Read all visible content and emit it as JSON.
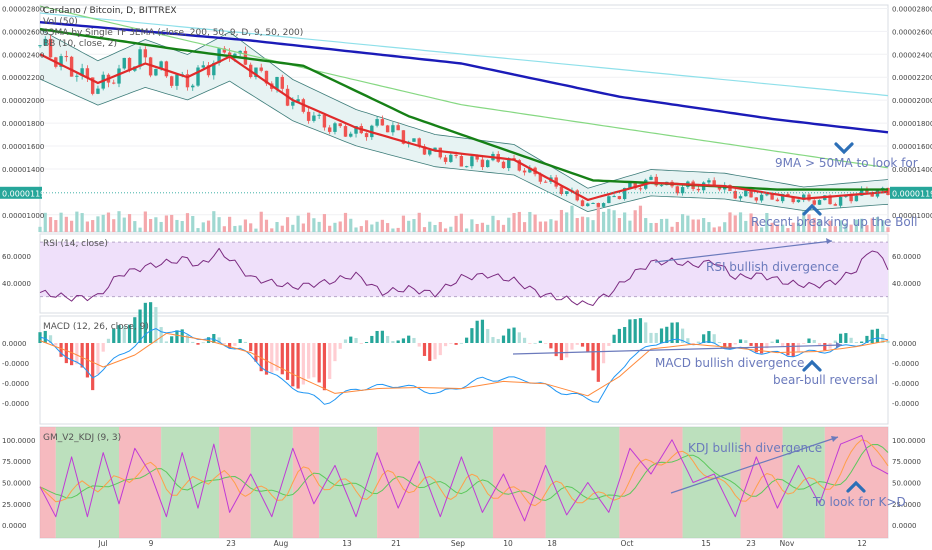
{
  "header": {
    "title": "Cardano / Bitcoin, D, BITTREX",
    "indicators": [
      "Vol (50)",
      "33MA by Single TF 3EMA (close, 200, 50, 9, D, 9, 50, 200)",
      "BB (10, close, 2)"
    ]
  },
  "panes": {
    "rsi": {
      "label": "RSI (14, close)"
    },
    "macd": {
      "label": "MACD (12, 26, close, 9)"
    },
    "kdj": {
      "label": "GM_V2_KDJ (9, 3)"
    }
  },
  "current_price": "0.00001192",
  "annotations": {
    "ma_cross": "9MA > 50MA to look for",
    "boll_break": "Recent breaking up the Boll",
    "rsi_div": "RSI bullish divergence",
    "macd_div": "MACD bullish divergence",
    "reversal": "bear-bull reversal",
    "kdj_div": "KDJ bullish divergence",
    "kd_cross": "To look for K>D"
  },
  "colors": {
    "up": "#26a69a",
    "down": "#ef5350",
    "ma200": "#1b1bb8",
    "ma50": "#168016",
    "ma9": "#e02a2a",
    "rsi_line": "#7b2b80",
    "rsi_band": "#efe0fa",
    "macd_line": "#2196f3",
    "signal_line": "#ff8a3c",
    "kdj_k": "#c03ad6",
    "kdj_d": "#ff9f4a",
    "kdj_j": "#5cc85c",
    "bull_bg": "#a5d6a7",
    "bear_bg": "#f3a3aa",
    "annotation": "#6b7abc",
    "price_label_bg": "#26a69a"
  },
  "chart_data": {
    "type": "candlestick",
    "x_ticks": [
      "Jul",
      "9",
      "23",
      "Aug",
      "13",
      "21",
      "Sep",
      "10",
      "18",
      "Oct",
      "15",
      "23",
      "Nov",
      "12"
    ],
    "price_axis": {
      "ticks": [
        "0.00002800",
        "0.00002600",
        "0.00002400",
        "0.00002200",
        "0.00002000",
        "0.00001800",
        "0.00001600",
        "0.00001400",
        "0.00001192",
        "0.00001000"
      ],
      "range": [
        8.5e-06,
        2.83e-05
      ]
    },
    "rsi_axis": {
      "ticks": [
        "60.0000",
        "40.0000"
      ],
      "range": [
        18,
        76
      ],
      "band": [
        30,
        70
      ]
    },
    "macd_axis": {
      "ticks": [
        "0.0000",
        "-0.0000",
        "-0.0000",
        "-0.0000"
      ]
    },
    "kdj_axis": {
      "ticks": [
        "100.0000",
        "75.0000",
        "50.0000",
        "25.0000",
        "0.0000"
      ],
      "range": [
        -15,
        115
      ]
    },
    "price_path": [
      [
        0,
        2.48e-05
      ],
      [
        6,
        2.28e-05
      ],
      [
        11,
        2.1e-05
      ],
      [
        15,
        2.26e-05
      ],
      [
        19,
        2.38e-05
      ],
      [
        23,
        2.24e-05
      ],
      [
        28,
        2.15e-05
      ],
      [
        32,
        2.3e-05
      ],
      [
        36,
        2.45e-05
      ],
      [
        40,
        2.28e-05
      ],
      [
        45,
        2.12e-05
      ],
      [
        50,
        1.9e-05
      ],
      [
        55,
        1.78e-05
      ],
      [
        60,
        1.7e-05
      ],
      [
        65,
        1.8e-05
      ],
      [
        70,
        1.65e-05
      ],
      [
        75,
        1.52e-05
      ],
      [
        80,
        1.46e-05
      ],
      [
        85,
        1.48e-05
      ],
      [
        90,
        1.45e-05
      ],
      [
        95,
        1.32e-05
      ],
      [
        100,
        1.2e-05
      ],
      [
        104,
        1.08e-05
      ],
      [
        108,
        1.12e-05
      ],
      [
        112,
        1.25e-05
      ],
      [
        116,
        1.3e-05
      ],
      [
        120,
        1.24e-05
      ],
      [
        124,
        1.25e-05
      ],
      [
        128,
        1.28e-05
      ],
      [
        132,
        1.18e-05
      ],
      [
        137,
        1.16e-05
      ],
      [
        142,
        1.14e-05
      ],
      [
        147,
        1.13e-05
      ],
      [
        151,
        1.12e-05
      ],
      [
        155,
        1.18e-05
      ],
      [
        158,
        1.2e-05
      ],
      [
        161,
        1.19e-05
      ]
    ],
    "ma_200": [
      [
        0,
        2.68e-05
      ],
      [
        40,
        2.52e-05
      ],
      [
        80,
        2.32e-05
      ],
      [
        110,
        2.03e-05
      ],
      [
        140,
        1.83e-05
      ],
      [
        161,
        1.72e-05
      ]
    ],
    "ma_50": [
      [
        0,
        2.62e-05
      ],
      [
        25,
        2.45e-05
      ],
      [
        50,
        2.3e-05
      ],
      [
        70,
        1.86e-05
      ],
      [
        90,
        1.54e-05
      ],
      [
        105,
        1.3e-05
      ],
      [
        120,
        1.27e-05
      ],
      [
        140,
        1.22e-05
      ],
      [
        161,
        1.22e-05
      ]
    ],
    "ma_9": [
      [
        0,
        2.4e-05
      ],
      [
        11,
        2.15e-05
      ],
      [
        20,
        2.32e-05
      ],
      [
        28,
        2.2e-05
      ],
      [
        36,
        2.38e-05
      ],
      [
        48,
        2e-05
      ],
      [
        60,
        1.76e-05
      ],
      [
        75,
        1.56e-05
      ],
      [
        90,
        1.48e-05
      ],
      [
        104,
        1.13e-05
      ],
      [
        116,
        1.28e-05
      ],
      [
        130,
        1.25e-05
      ],
      [
        145,
        1.14e-05
      ],
      [
        161,
        1.2e-05
      ]
    ],
    "ma_light_blue": [
      [
        0,
        2.76e-05
      ],
      [
        161,
        2.04e-05
      ]
    ],
    "ma_light_green": [
      [
        0,
        2.82e-05
      ],
      [
        80,
        1.96e-05
      ],
      [
        161,
        1.41e-05
      ]
    ],
    "rsi": [
      [
        0,
        33
      ],
      [
        6,
        29
      ],
      [
        11,
        30
      ],
      [
        15,
        46
      ],
      [
        20,
        52
      ],
      [
        28,
        58
      ],
      [
        30,
        52
      ],
      [
        34,
        63
      ],
      [
        36,
        58
      ],
      [
        40,
        44
      ],
      [
        48,
        37
      ],
      [
        55,
        41
      ],
      [
        60,
        46
      ],
      [
        65,
        33
      ],
      [
        70,
        36
      ],
      [
        75,
        32
      ],
      [
        80,
        44
      ],
      [
        85,
        46
      ],
      [
        90,
        42
      ],
      [
        95,
        32
      ],
      [
        100,
        28
      ],
      [
        104,
        24
      ],
      [
        108,
        32
      ],
      [
        112,
        45
      ],
      [
        116,
        55
      ],
      [
        120,
        56
      ],
      [
        124,
        53
      ],
      [
        128,
        56
      ],
      [
        132,
        44
      ],
      [
        137,
        46
      ],
      [
        142,
        40
      ],
      [
        147,
        38
      ],
      [
        151,
        41
      ],
      [
        155,
        50
      ],
      [
        158,
        66
      ],
      [
        161,
        52
      ]
    ],
    "macd_line": [
      [
        0,
        0.05
      ],
      [
        5,
        -0.1
      ],
      [
        10,
        -0.28
      ],
      [
        16,
        -0.08
      ],
      [
        22,
        0.12
      ],
      [
        30,
        0.05
      ],
      [
        38,
        -0.05
      ],
      [
        46,
        -0.32
      ],
      [
        54,
        -0.5
      ],
      [
        60,
        -0.38
      ],
      [
        68,
        -0.35
      ],
      [
        76,
        -0.42
      ],
      [
        84,
        -0.3
      ],
      [
        92,
        -0.3
      ],
      [
        100,
        -0.42
      ],
      [
        106,
        -0.48
      ],
      [
        112,
        -0.12
      ],
      [
        118,
        0.02
      ],
      [
        126,
        0.0
      ],
      [
        134,
        -0.06
      ],
      [
        142,
        -0.1
      ],
      [
        150,
        -0.06
      ],
      [
        156,
        0.0
      ],
      [
        161,
        0.04
      ]
    ],
    "signal_line": [
      [
        0,
        0.02
      ],
      [
        6,
        -0.08
      ],
      [
        12,
        -0.2
      ],
      [
        18,
        -0.1
      ],
      [
        24,
        0.08
      ],
      [
        32,
        0.02
      ],
      [
        40,
        -0.08
      ],
      [
        48,
        -0.26
      ],
      [
        56,
        -0.42
      ],
      [
        64,
        -0.38
      ],
      [
        72,
        -0.37
      ],
      [
        80,
        -0.38
      ],
      [
        88,
        -0.32
      ],
      [
        96,
        -0.34
      ],
      [
        104,
        -0.44
      ],
      [
        110,
        -0.28
      ],
      [
        116,
        -0.05
      ],
      [
        124,
        -0.01
      ],
      [
        132,
        -0.04
      ],
      [
        140,
        -0.08
      ],
      [
        148,
        -0.07
      ],
      [
        155,
        -0.03
      ],
      [
        161,
        0.02
      ]
    ],
    "kdj_k": [
      [
        0,
        45
      ],
      [
        3,
        10
      ],
      [
        6,
        80
      ],
      [
        9,
        10
      ],
      [
        12,
        85
      ],
      [
        15,
        25
      ],
      [
        18,
        90
      ],
      [
        21,
        60
      ],
      [
        24,
        10
      ],
      [
        27,
        85
      ],
      [
        30,
        20
      ],
      [
        33,
        95
      ],
      [
        36,
        15
      ],
      [
        40,
        60
      ],
      [
        44,
        10
      ],
      [
        48,
        90
      ],
      [
        52,
        25
      ],
      [
        56,
        70
      ],
      [
        60,
        10
      ],
      [
        64,
        85
      ],
      [
        68,
        20
      ],
      [
        72,
        75
      ],
      [
        76,
        10
      ],
      [
        80,
        80
      ],
      [
        84,
        15
      ],
      [
        88,
        60
      ],
      [
        92,
        5
      ],
      [
        96,
        70
      ],
      [
        100,
        12
      ],
      [
        104,
        50
      ],
      [
        108,
        15
      ],
      [
        112,
        90
      ],
      [
        116,
        60
      ],
      [
        120,
        100
      ],
      [
        124,
        50
      ],
      [
        128,
        60
      ],
      [
        132,
        10
      ],
      [
        136,
        80
      ],
      [
        140,
        20
      ],
      [
        144,
        70
      ],
      [
        148,
        25
      ],
      [
        152,
        95
      ],
      [
        156,
        105
      ],
      [
        158,
        70
      ],
      [
        161,
        60
      ]
    ]
  }
}
